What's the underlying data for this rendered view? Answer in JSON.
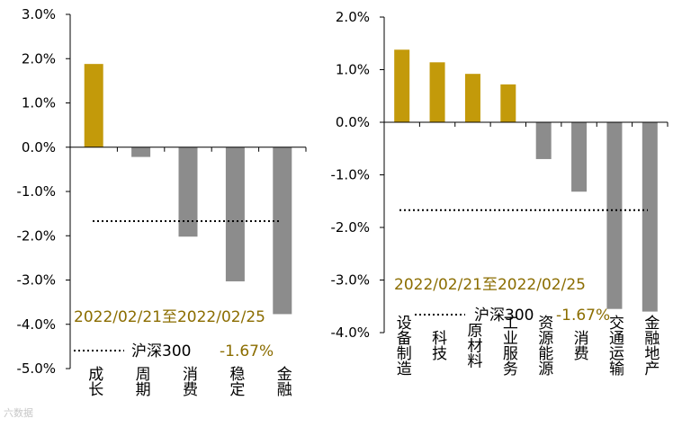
{
  "colors": {
    "positive": "#C39A0A",
    "negative": "#8C8C8C",
    "gold_text": "#8B6D00",
    "axis": "#000000"
  },
  "watermark": "六数据",
  "chart_data": [
    {
      "type": "bar",
      "categories": [
        "成长",
        "周期",
        "消费",
        "稳定",
        "金融"
      ],
      "values": [
        1.88,
        -0.22,
        -2.02,
        -3.03,
        -3.77
      ],
      "ylim": [
        -5.0,
        3.0
      ],
      "yticks": [
        3.0,
        2.0,
        1.0,
        0.0,
        -1.0,
        -2.0,
        -3.0,
        -4.0,
        -5.0
      ],
      "ytick_labels": [
        "3.0%",
        "2.0%",
        "1.0%",
        "0.0%",
        "-1.0%",
        "-2.0%",
        "-3.0%",
        "-4.0%",
        "-5.0%"
      ],
      "reference_line": {
        "value": -1.67,
        "style": "dotted"
      },
      "annotation": {
        "date_range": "2022/02/21至2022/02/25",
        "legend_name": "沪深300",
        "legend_value": "-1.67%"
      },
      "grid": false
    },
    {
      "type": "bar",
      "categories": [
        "设备制造",
        "科技",
        "原材料",
        "工业服务",
        "资源能源",
        "消费",
        "交通运输",
        "金融地产"
      ],
      "values": [
        1.38,
        1.14,
        0.92,
        0.72,
        -0.7,
        -1.32,
        -3.55,
        -3.6
      ],
      "ylim": [
        -4.0,
        2.0
      ],
      "yticks": [
        2.0,
        1.0,
        0.0,
        -1.0,
        -2.0,
        -3.0,
        -4.0
      ],
      "ytick_labels": [
        "2.0%",
        "1.0%",
        "0.0%",
        "-1.0%",
        "-2.0%",
        "-3.0%",
        "-4.0%"
      ],
      "reference_line": {
        "value": -1.67,
        "style": "dotted"
      },
      "annotation": {
        "date_range": "2022/02/21至2022/02/25",
        "legend_name": "沪深300",
        "legend_value": "-1.67%"
      },
      "grid": false
    }
  ]
}
